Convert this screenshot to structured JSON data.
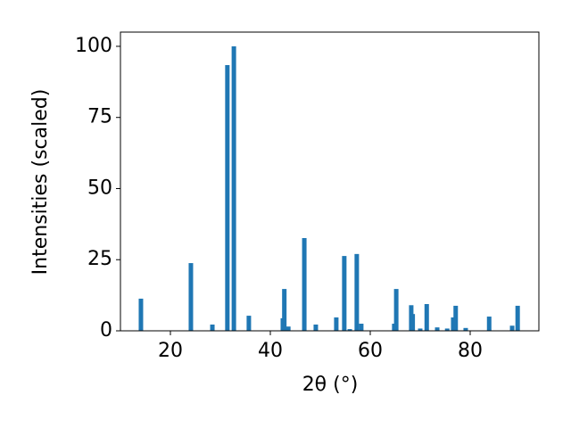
{
  "chart_data": {
    "type": "bar",
    "color": "#1f77b4",
    "x_label": "2θ (°)",
    "y_label": "Intensities (scaled)",
    "x": [
      14.1,
      24.1,
      28.4,
      31.4,
      32.7,
      35.7,
      42.5,
      42.8,
      43.6,
      46.8,
      49.1,
      53.2,
      54.8,
      55.9,
      57.3,
      58.2,
      64.8,
      65.2,
      68.2,
      68.5,
      70.0,
      71.3,
      73.4,
      75.4,
      76.6,
      77.1,
      79.1,
      83.8,
      88.4,
      89.5
    ],
    "values": [
      11.3,
      23.8,
      2.2,
      93.4,
      100,
      5.3,
      4.4,
      14.7,
      1.5,
      32.6,
      2.2,
      4.7,
      26.3,
      0.6,
      27,
      2.5,
      2.5,
      14.7,
      9,
      5.9,
      0.8,
      9.4,
      1.2,
      0.8,
      4.7,
      8.8,
      1,
      5,
      1.8,
      8.8
    ],
    "xlim": [
      10,
      93.75
    ],
    "ylim": [
      0,
      105
    ],
    "xticks": [
      20,
      40,
      60,
      80
    ],
    "yticks": [
      0,
      25,
      50,
      75,
      100
    ]
  }
}
